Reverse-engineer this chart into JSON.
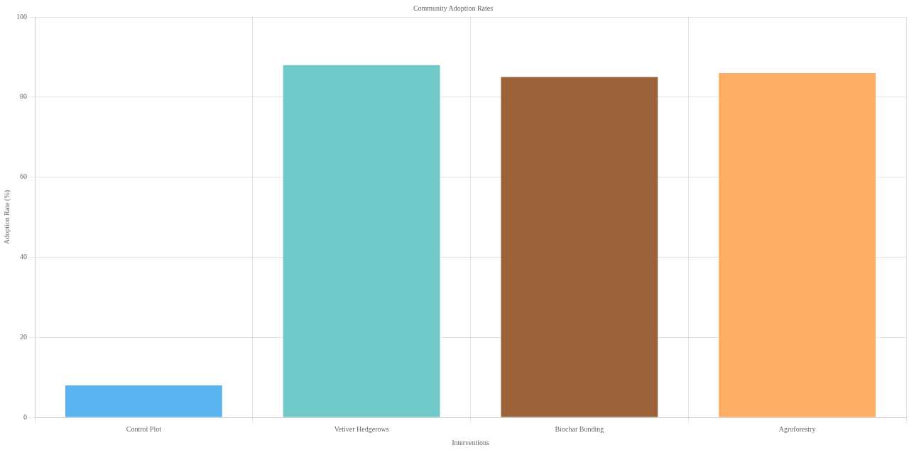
{
  "chart_data": {
    "type": "bar",
    "title": "Community Adoption Rates",
    "xlabel": "Interventions",
    "ylabel": "Adoption Rate (%)",
    "categories": [
      "Control Plot",
      "Vetiver Hedgerows",
      "Biochar Bunding",
      "Agroforestry"
    ],
    "values": [
      8,
      88,
      85,
      86
    ],
    "colors": [
      "#5ab3ee",
      "#6fc9c9",
      "#9c633b",
      "#fdae64"
    ],
    "ylim": [
      0,
      100
    ],
    "yticks": [
      0,
      20,
      40,
      60,
      80,
      100
    ],
    "grid": true,
    "legend": false
  }
}
